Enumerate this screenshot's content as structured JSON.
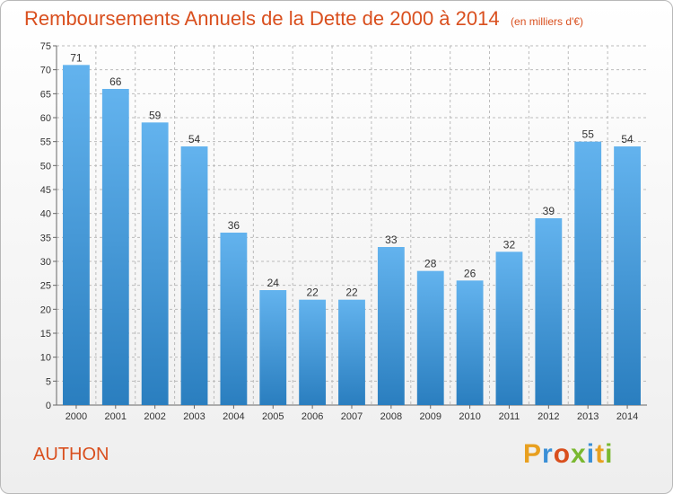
{
  "chart_data": {
    "type": "bar",
    "title": "Remboursements Annuels de la Dette de 2000 à 2014",
    "subtitle": "(en milliers d'€)",
    "categories": [
      "2000",
      "2001",
      "2002",
      "2003",
      "2004",
      "2005",
      "2006",
      "2007",
      "2008",
      "2009",
      "2010",
      "2011",
      "2012",
      "2013",
      "2014"
    ],
    "values": [
      71,
      66,
      59,
      54,
      36,
      24,
      22,
      22,
      33,
      28,
      26,
      32,
      39,
      55,
      54
    ],
    "xlabel": "",
    "ylabel": "",
    "ylim": [
      0,
      75
    ],
    "yticks": [
      0,
      5,
      10,
      15,
      20,
      25,
      30,
      35,
      40,
      45,
      50,
      55,
      60,
      65,
      70,
      75
    ],
    "grid": true
  },
  "footer": {
    "commune": "AUTHON",
    "brand": "Proxiti",
    "brand_letters": [
      "P",
      "r",
      "o",
      "x",
      "i",
      "t",
      "i"
    ]
  },
  "colors": {
    "title": "#d94f1e",
    "bar_top": "#63b3ee",
    "bar_bottom": "#2a7ebf",
    "grid": "#bbbbbb",
    "brand_letters": [
      "#e8a020",
      "#3a8fd6",
      "#d94f1e",
      "#7ab830",
      "#3a8fd6",
      "#e8a020",
      "#7ab830"
    ]
  }
}
